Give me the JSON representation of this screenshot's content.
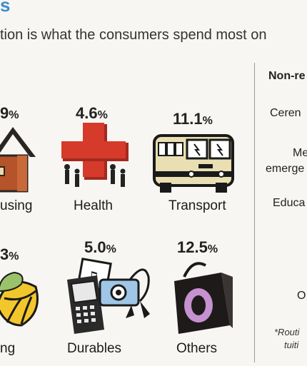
{
  "heading": "s",
  "subtitle": "tion is what the consumers spend most on",
  "categories": [
    {
      "id": "housing",
      "value": "9",
      "unit": "%",
      "label": "using"
    },
    {
      "id": "health",
      "value": "4.6",
      "unit": "%",
      "label": "Health"
    },
    {
      "id": "transport",
      "value": "11.1",
      "unit": "%",
      "label": "Transport"
    },
    {
      "id": "food",
      "value": "3",
      "unit": "%",
      "label": "ng"
    },
    {
      "id": "durables",
      "value": "5.0",
      "unit": "%",
      "label": "Durables"
    },
    {
      "id": "others",
      "value": "12.5",
      "unit": "%",
      "label": "Others"
    }
  ],
  "side_panel": {
    "title": "Non-re",
    "items": [
      "Ceren",
      "Me",
      "emerge",
      "Educa",
      "",
      "O"
    ],
    "footnote_1": "*Routi",
    "footnote_2": "tuiti"
  },
  "colors": {
    "heading": "#3a8ec8",
    "house": "#b5532a",
    "health_cross": "#d63a2b",
    "bus_body": "#e9dfb2",
    "purse": "#1e1a1a",
    "purse_ring": "#c591cf",
    "ball": "#f2c72b"
  }
}
